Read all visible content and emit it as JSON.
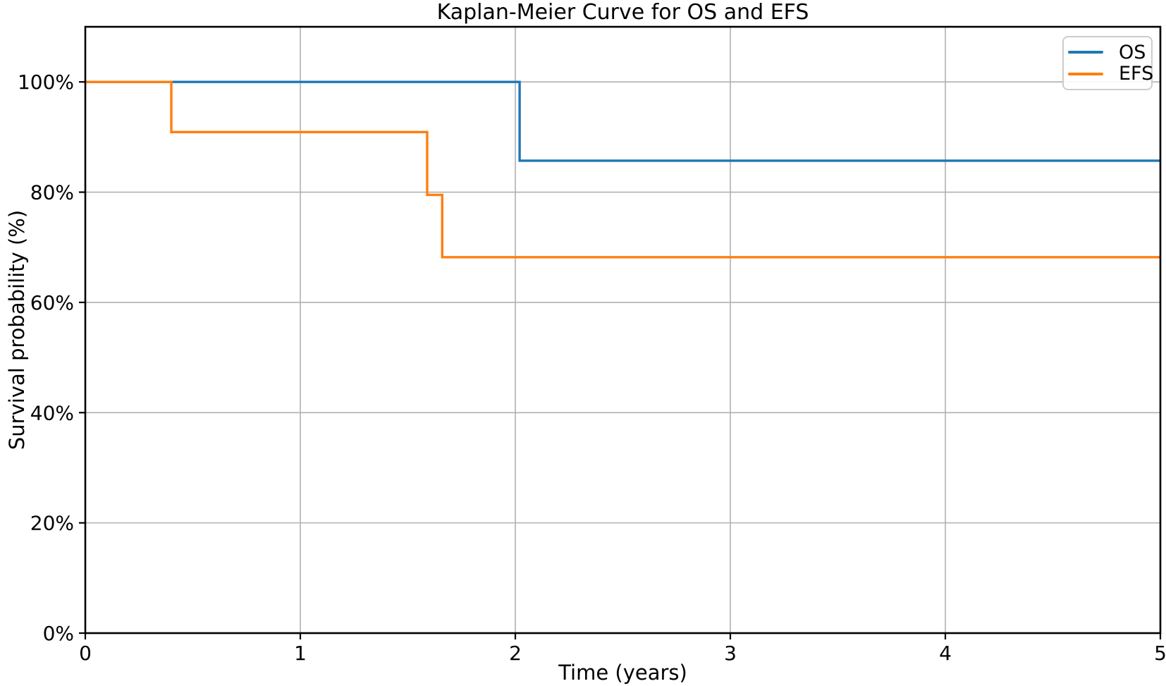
{
  "figure": {
    "title": "Kaplan-Meier Curve for OS and EFS"
  },
  "chart_data": {
    "type": "line",
    "subtype": "step-post-kaplan-meier",
    "title": "Kaplan-Meier Curve for OS and EFS",
    "xlabel": "Time (years)",
    "ylabel": "Survival probability (%)",
    "xlim": [
      0,
      5
    ],
    "ylim": [
      0,
      110
    ],
    "xticks": [
      {
        "value": 0,
        "label": "0"
      },
      {
        "value": 1,
        "label": "1"
      },
      {
        "value": 2,
        "label": "2"
      },
      {
        "value": 3,
        "label": "3"
      },
      {
        "value": 4,
        "label": "4"
      },
      {
        "value": 5,
        "label": "5"
      }
    ],
    "yticks": [
      {
        "value": 0,
        "label": "0%"
      },
      {
        "value": 20,
        "label": "20%"
      },
      {
        "value": 40,
        "label": "40%"
      },
      {
        "value": 60,
        "label": "60%"
      },
      {
        "value": 80,
        "label": "80%"
      },
      {
        "value": 100,
        "label": "100%"
      }
    ],
    "grid": true,
    "grid_color": "#b0b0b0",
    "axis_color": "#000000",
    "background": "#ffffff",
    "legend": {
      "position": "upper right",
      "edge_color": "#cccccc"
    },
    "series": [
      {
        "name": "OS",
        "color": "#1f77b4",
        "x": [
          0,
          2.02,
          5
        ],
        "y": [
          100,
          85.7,
          85.7
        ]
      },
      {
        "name": "EFS",
        "color": "#ff7f0e",
        "x": [
          0,
          0.4,
          1.59,
          1.66,
          5
        ],
        "y": [
          100,
          90.9,
          79.5,
          68.2,
          68.2
        ]
      }
    ]
  }
}
